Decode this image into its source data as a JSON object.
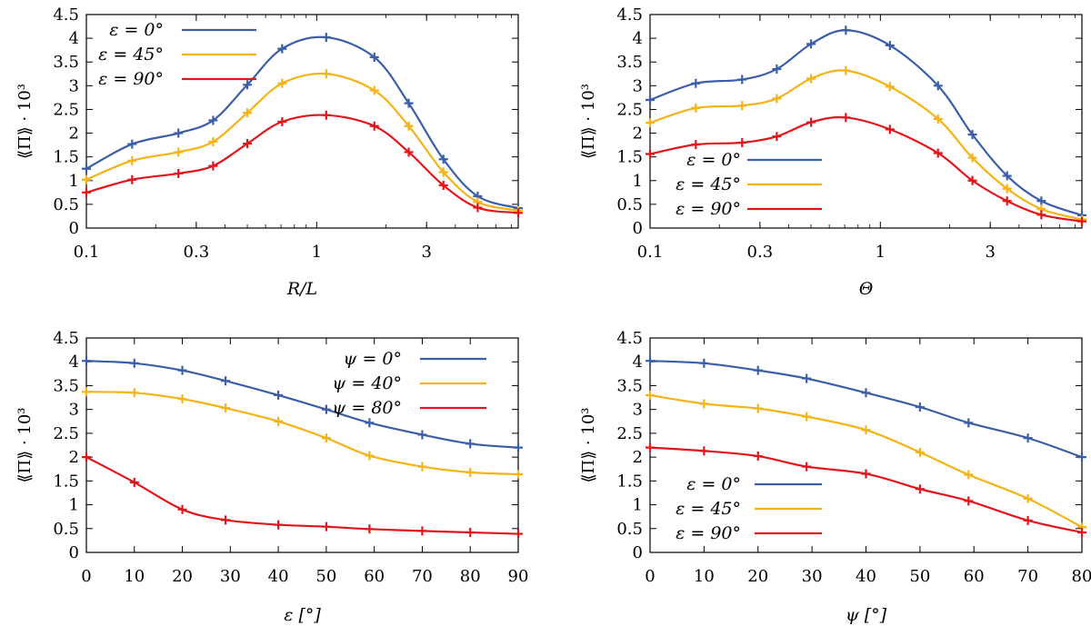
{
  "colors": {
    "blue": "#3b5ea8",
    "orange": "#f5b316",
    "red": "#e3151b",
    "axis": "#000000"
  },
  "chart_data": [
    {
      "type": "line",
      "xscale": "log",
      "ylabel": "⟪Π⟫ · 10³",
      "xlabel": "R/L",
      "xlim": [
        0.1,
        7.5
      ],
      "ylim": [
        0,
        4.5
      ],
      "xticks": [
        0.1,
        0.3,
        1,
        3
      ],
      "xtick_labels": [
        "0.1",
        "0.3",
        "1",
        "3"
      ],
      "yticks": [
        0,
        0.5,
        1,
        1.5,
        2,
        2.5,
        3,
        3.5,
        4,
        4.5
      ],
      "ytick_labels": [
        "0",
        "0.5",
        "1",
        "1.5",
        "2",
        "2.5",
        "3",
        "3.5",
        "4",
        "4.5"
      ],
      "legend_position": "top-left",
      "x": [
        0.1,
        0.158,
        0.251,
        0.355,
        0.5,
        0.708,
        1.1,
        1.78,
        2.51,
        3.55,
        5.0,
        7.5
      ],
      "series": [
        {
          "name": "ε = 0°",
          "color": "blue",
          "values": [
            1.25,
            1.77,
            2.0,
            2.27,
            3.02,
            3.78,
            4.02,
            3.6,
            2.63,
            1.45,
            0.67,
            0.42
          ]
        },
        {
          "name": "ε = 45°",
          "color": "orange",
          "values": [
            1.02,
            1.42,
            1.6,
            1.82,
            2.43,
            3.05,
            3.25,
            2.9,
            2.15,
            1.18,
            0.55,
            0.37
          ]
        },
        {
          "name": "ε = 90°",
          "color": "red",
          "values": [
            0.75,
            1.02,
            1.15,
            1.31,
            1.78,
            2.24,
            2.38,
            2.15,
            1.6,
            0.9,
            0.43,
            0.32
          ]
        }
      ]
    },
    {
      "type": "line",
      "xscale": "log",
      "ylabel": "⟪Π⟫ · 10³",
      "xlabel": "Θ",
      "xlim": [
        0.1,
        7.5
      ],
      "ylim": [
        0,
        4.5
      ],
      "xticks": [
        0.1,
        0.3,
        1,
        3
      ],
      "xtick_labels": [
        "0.1",
        "0.3",
        "1",
        "3"
      ],
      "yticks": [
        0,
        0.5,
        1,
        1.5,
        2,
        2.5,
        3,
        3.5,
        4,
        4.5
      ],
      "ytick_labels": [
        "0",
        "0.5",
        "1",
        "1.5",
        "2",
        "2.5",
        "3",
        "3.5",
        "4",
        "4.5"
      ],
      "legend_position": "bottom-left",
      "x": [
        0.1,
        0.158,
        0.251,
        0.355,
        0.5,
        0.708,
        1.1,
        1.78,
        2.51,
        3.55,
        5.0,
        7.5
      ],
      "series": [
        {
          "name": "ε = 0°",
          "color": "blue",
          "values": [
            2.7,
            3.05,
            3.13,
            3.35,
            3.88,
            4.17,
            3.85,
            3.0,
            1.97,
            1.1,
            0.57,
            0.27
          ]
        },
        {
          "name": "ε = 45°",
          "color": "orange",
          "values": [
            2.22,
            2.53,
            2.58,
            2.73,
            3.15,
            3.32,
            2.98,
            2.3,
            1.48,
            0.83,
            0.4,
            0.18
          ]
        },
        {
          "name": "ε = 90°",
          "color": "red",
          "values": [
            1.56,
            1.76,
            1.8,
            1.93,
            2.23,
            2.33,
            2.08,
            1.58,
            1.0,
            0.57,
            0.28,
            0.14
          ]
        }
      ]
    },
    {
      "type": "line",
      "xscale": "linear",
      "ylabel": "⟪Π⟫ · 10³",
      "xlabel": "ε [°]",
      "xlim": [
        0,
        90
      ],
      "ylim": [
        0,
        4.5
      ],
      "xticks": [
        0,
        10,
        20,
        30,
        40,
        50,
        60,
        70,
        80,
        90
      ],
      "xtick_labels": [
        "0",
        "10",
        "20",
        "30",
        "40",
        "50",
        "60",
        "70",
        "80",
        "90"
      ],
      "yticks": [
        0,
        0.5,
        1,
        1.5,
        2,
        2.5,
        3,
        3.5,
        4,
        4.5
      ],
      "ytick_labels": [
        "0",
        "0.5",
        "1",
        "1.5",
        "2",
        "2.5",
        "3",
        "3.5",
        "4",
        "4.5"
      ],
      "legend_position": "top-right",
      "x": [
        0,
        10,
        20,
        29,
        40,
        50,
        59,
        70,
        80,
        90
      ],
      "series": [
        {
          "name": "ψ = 0°",
          "color": "blue",
          "values": [
            4.02,
            3.97,
            3.82,
            3.6,
            3.3,
            3.0,
            2.72,
            2.47,
            2.28,
            2.2
          ]
        },
        {
          "name": "ψ = 40°",
          "color": "orange",
          "values": [
            3.37,
            3.35,
            3.22,
            3.03,
            2.75,
            2.4,
            2.03,
            1.8,
            1.68,
            1.64
          ]
        },
        {
          "name": "ψ = 80°",
          "color": "red",
          "values": [
            2.0,
            1.47,
            0.9,
            0.68,
            0.58,
            0.54,
            0.49,
            0.45,
            0.42,
            0.39
          ]
        }
      ]
    },
    {
      "type": "line",
      "xscale": "linear",
      "ylabel": "⟪Π⟫ · 10³",
      "xlabel": "ψ [°]",
      "xlim": [
        0,
        80
      ],
      "ylim": [
        0,
        4.5
      ],
      "xticks": [
        0,
        10,
        20,
        30,
        40,
        50,
        60,
        70,
        80
      ],
      "xtick_labels": [
        "0",
        "10",
        "20",
        "30",
        "40",
        "50",
        "60",
        "70",
        "80"
      ],
      "yticks": [
        0,
        0.5,
        1,
        1.5,
        2,
        2.5,
        3,
        3.5,
        4,
        4.5
      ],
      "ytick_labels": [
        "0",
        "0.5",
        "1",
        "1.5",
        "2",
        "2.5",
        "3",
        "3.5",
        "4",
        "4.5"
      ],
      "legend_position": "bottom-left",
      "x": [
        0,
        10,
        20,
        29,
        40,
        50,
        59,
        70,
        80
      ],
      "series": [
        {
          "name": "ε = 0°",
          "color": "blue",
          "values": [
            4.02,
            3.97,
            3.82,
            3.65,
            3.35,
            3.05,
            2.72,
            2.4,
            2.0
          ]
        },
        {
          "name": "ε = 45°",
          "color": "orange",
          "values": [
            3.3,
            3.12,
            3.02,
            2.85,
            2.57,
            2.1,
            1.63,
            1.13,
            0.53
          ]
        },
        {
          "name": "ε = 90°",
          "color": "red",
          "values": [
            2.2,
            2.13,
            2.02,
            1.8,
            1.65,
            1.33,
            1.08,
            0.67,
            0.42
          ]
        }
      ]
    }
  ]
}
